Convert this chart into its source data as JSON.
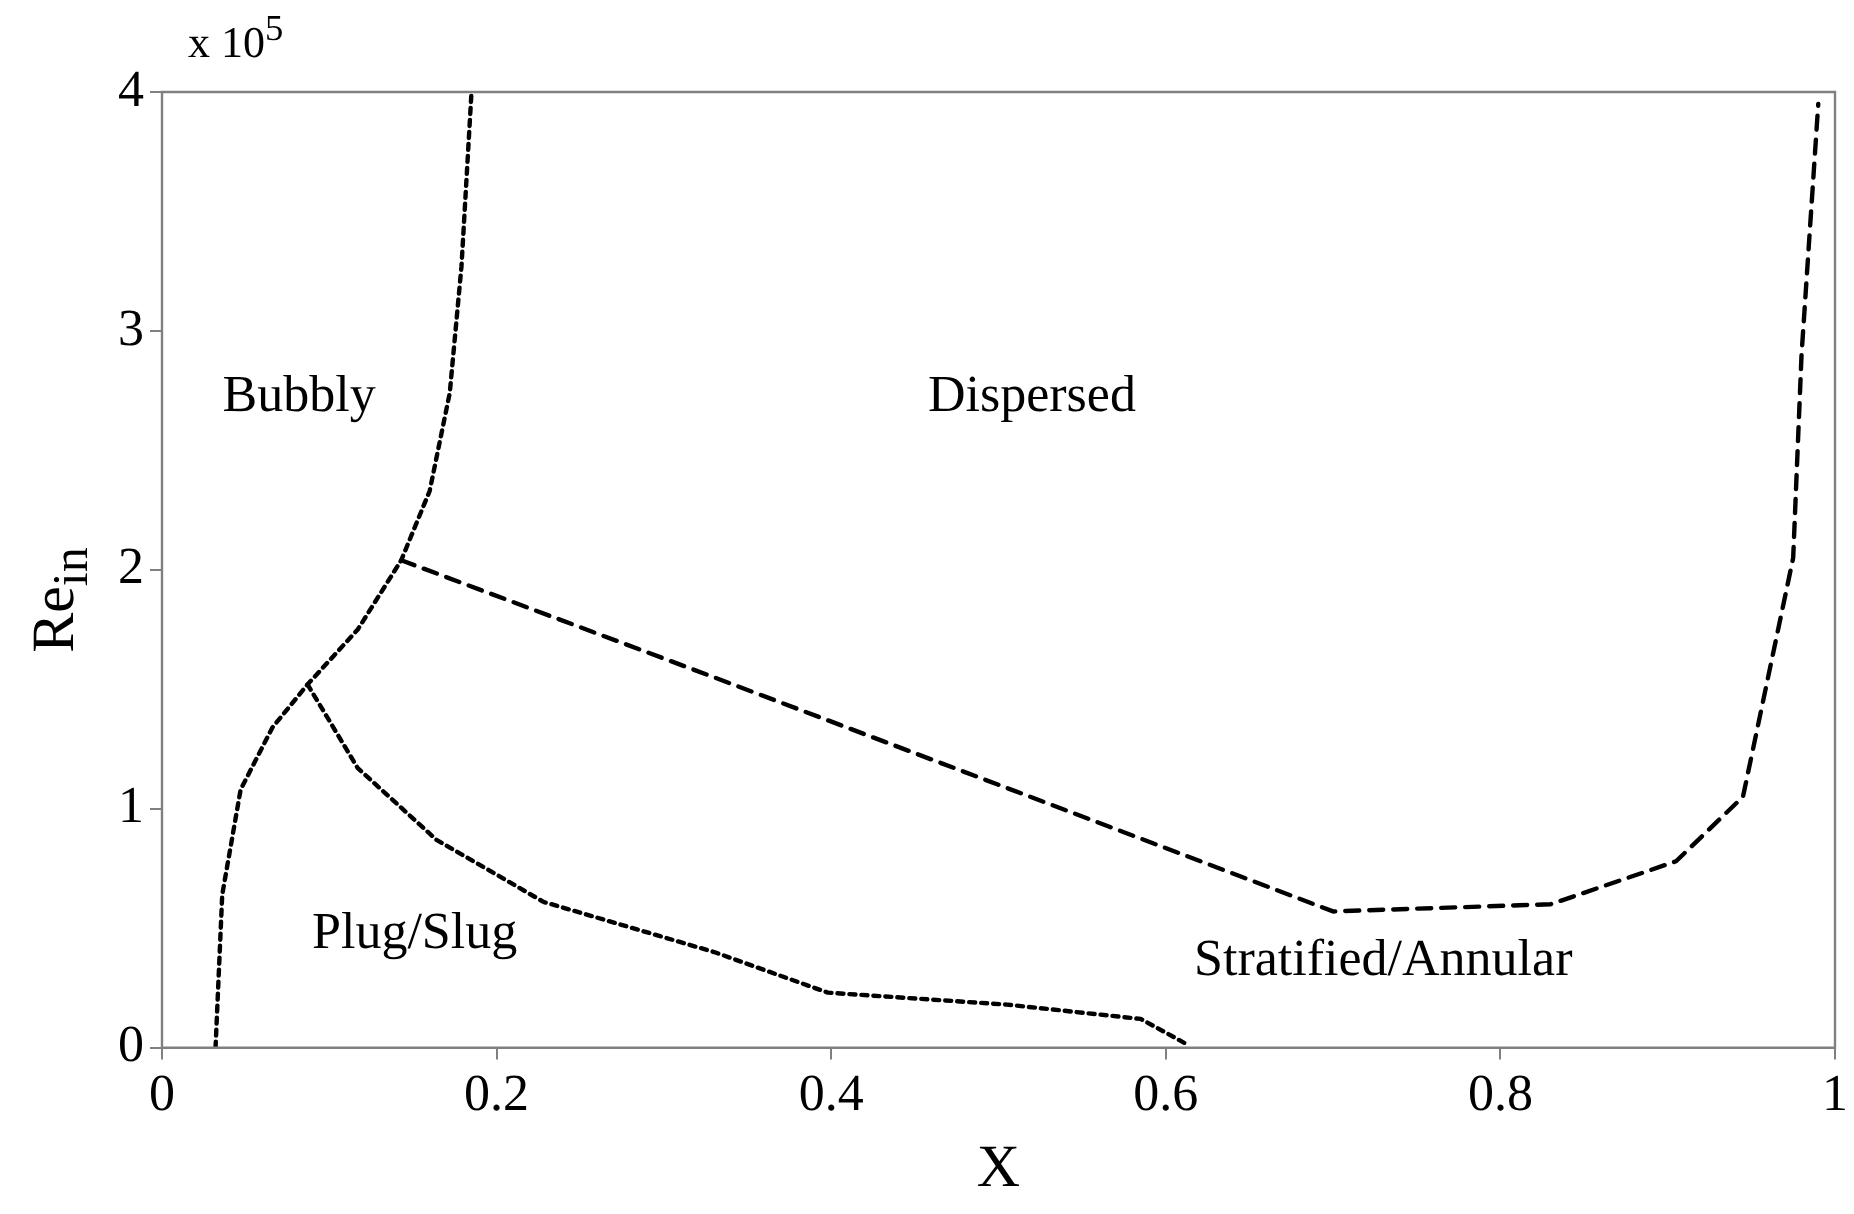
{
  "chart_data": {
    "type": "line",
    "xlabel": "X",
    "ylabel": "Re$_{in}$",
    "xlim": [
      0,
      1
    ],
    "xticks": [
      0,
      0.2,
      0.4,
      0.6,
      0.8,
      1
    ],
    "ylim": [
      0,
      4
    ],
    "yticks": [
      0,
      1,
      2,
      3,
      4
    ],
    "grid": false,
    "legend": false,
    "marker": "none",
    "series": [
      {
        "color": "#000000",
        "line_style": "dotted",
        "x": [
          0.032,
          0.036,
          0.047,
          0.066,
          0.087,
          0.117,
          0.143,
          0.16,
          0.172,
          0.179,
          0.185
        ],
        "values": [
          0,
          0.64,
          1.08,
          1.34,
          1.52,
          1.75,
          2.04,
          2.33,
          2.74,
          3.27,
          4.0
        ]
      },
      {
        "color": "#000000",
        "line_style": "dotted",
        "x": [
          0.087,
          0.117,
          0.164,
          0.228,
          0.33,
          0.398,
          0.505,
          0.585,
          0.611
        ],
        "values": [
          1.52,
          1.17,
          0.87,
          0.61,
          0.4,
          0.23,
          0.18,
          0.12,
          0.02
        ]
      },
      {
        "color": "#000000",
        "line_style": "dashed",
        "x": [
          0.143,
          0.33,
          0.5,
          0.7,
          0.83,
          0.905,
          0.945,
          0.975,
          0.98,
          0.99
        ],
        "values": [
          2.04,
          1.55,
          1.1,
          0.57,
          0.6,
          0.78,
          1.05,
          2.05,
          2.9,
          3.95
        ]
      }
    ],
    "annotations": [
      "x 10$^{5}$",
      "Bubbly",
      "Dispersed",
      "Plug/Slug",
      "Stratified/Annular"
    ]
  }
}
